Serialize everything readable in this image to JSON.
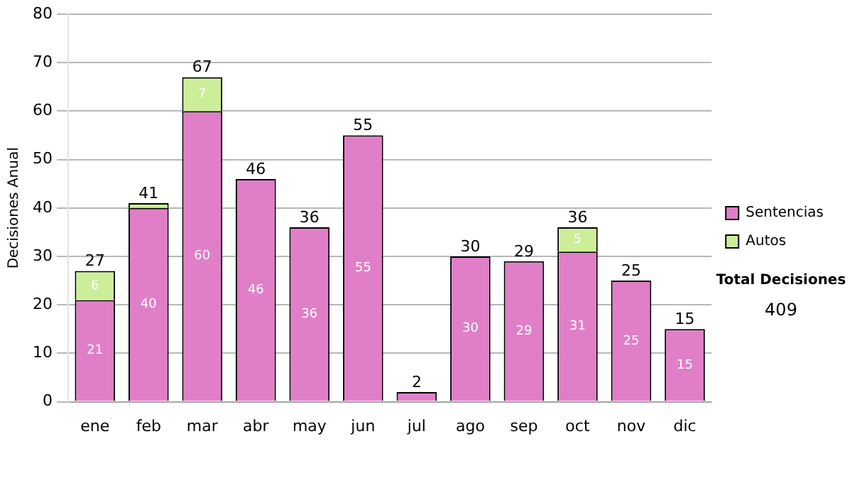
{
  "chart_data": {
    "type": "bar",
    "stacked": true,
    "ylabel": "Decisiones Anual",
    "categories": [
      "ene",
      "feb",
      "mar",
      "abr",
      "may",
      "jun",
      "jul",
      "ago",
      "sep",
      "oct",
      "nov",
      "dic"
    ],
    "series": [
      {
        "name": "Sentencias",
        "color": "#e07fc8",
        "values": [
          21,
          40,
          60,
          46,
          36,
          55,
          2,
          30,
          29,
          31,
          25,
          15
        ],
        "value_labels": [
          "21",
          "40",
          "60",
          "46",
          "36",
          "55",
          null,
          "30",
          "29",
          "31",
          "25",
          "15"
        ]
      },
      {
        "name": "Autos",
        "color": "#ccee99",
        "values": [
          6,
          1,
          7,
          0,
          0,
          0,
          0,
          0,
          0,
          5,
          0,
          0
        ],
        "value_labels": [
          "6",
          null,
          "7",
          null,
          null,
          null,
          null,
          null,
          null,
          "5",
          null,
          null
        ]
      }
    ],
    "totals": [
      "27",
      "41",
      "67",
      "46",
      "36",
      "55",
      "2",
      "30",
      "29",
      "36",
      "25",
      "15"
    ],
    "ylim": [
      0,
      80
    ],
    "yticks": [
      0,
      10,
      20,
      30,
      40,
      50,
      60,
      70,
      80
    ],
    "grid": "y",
    "legend": "right",
    "annotations": [
      "Total Decisiones",
      "409"
    ]
  }
}
